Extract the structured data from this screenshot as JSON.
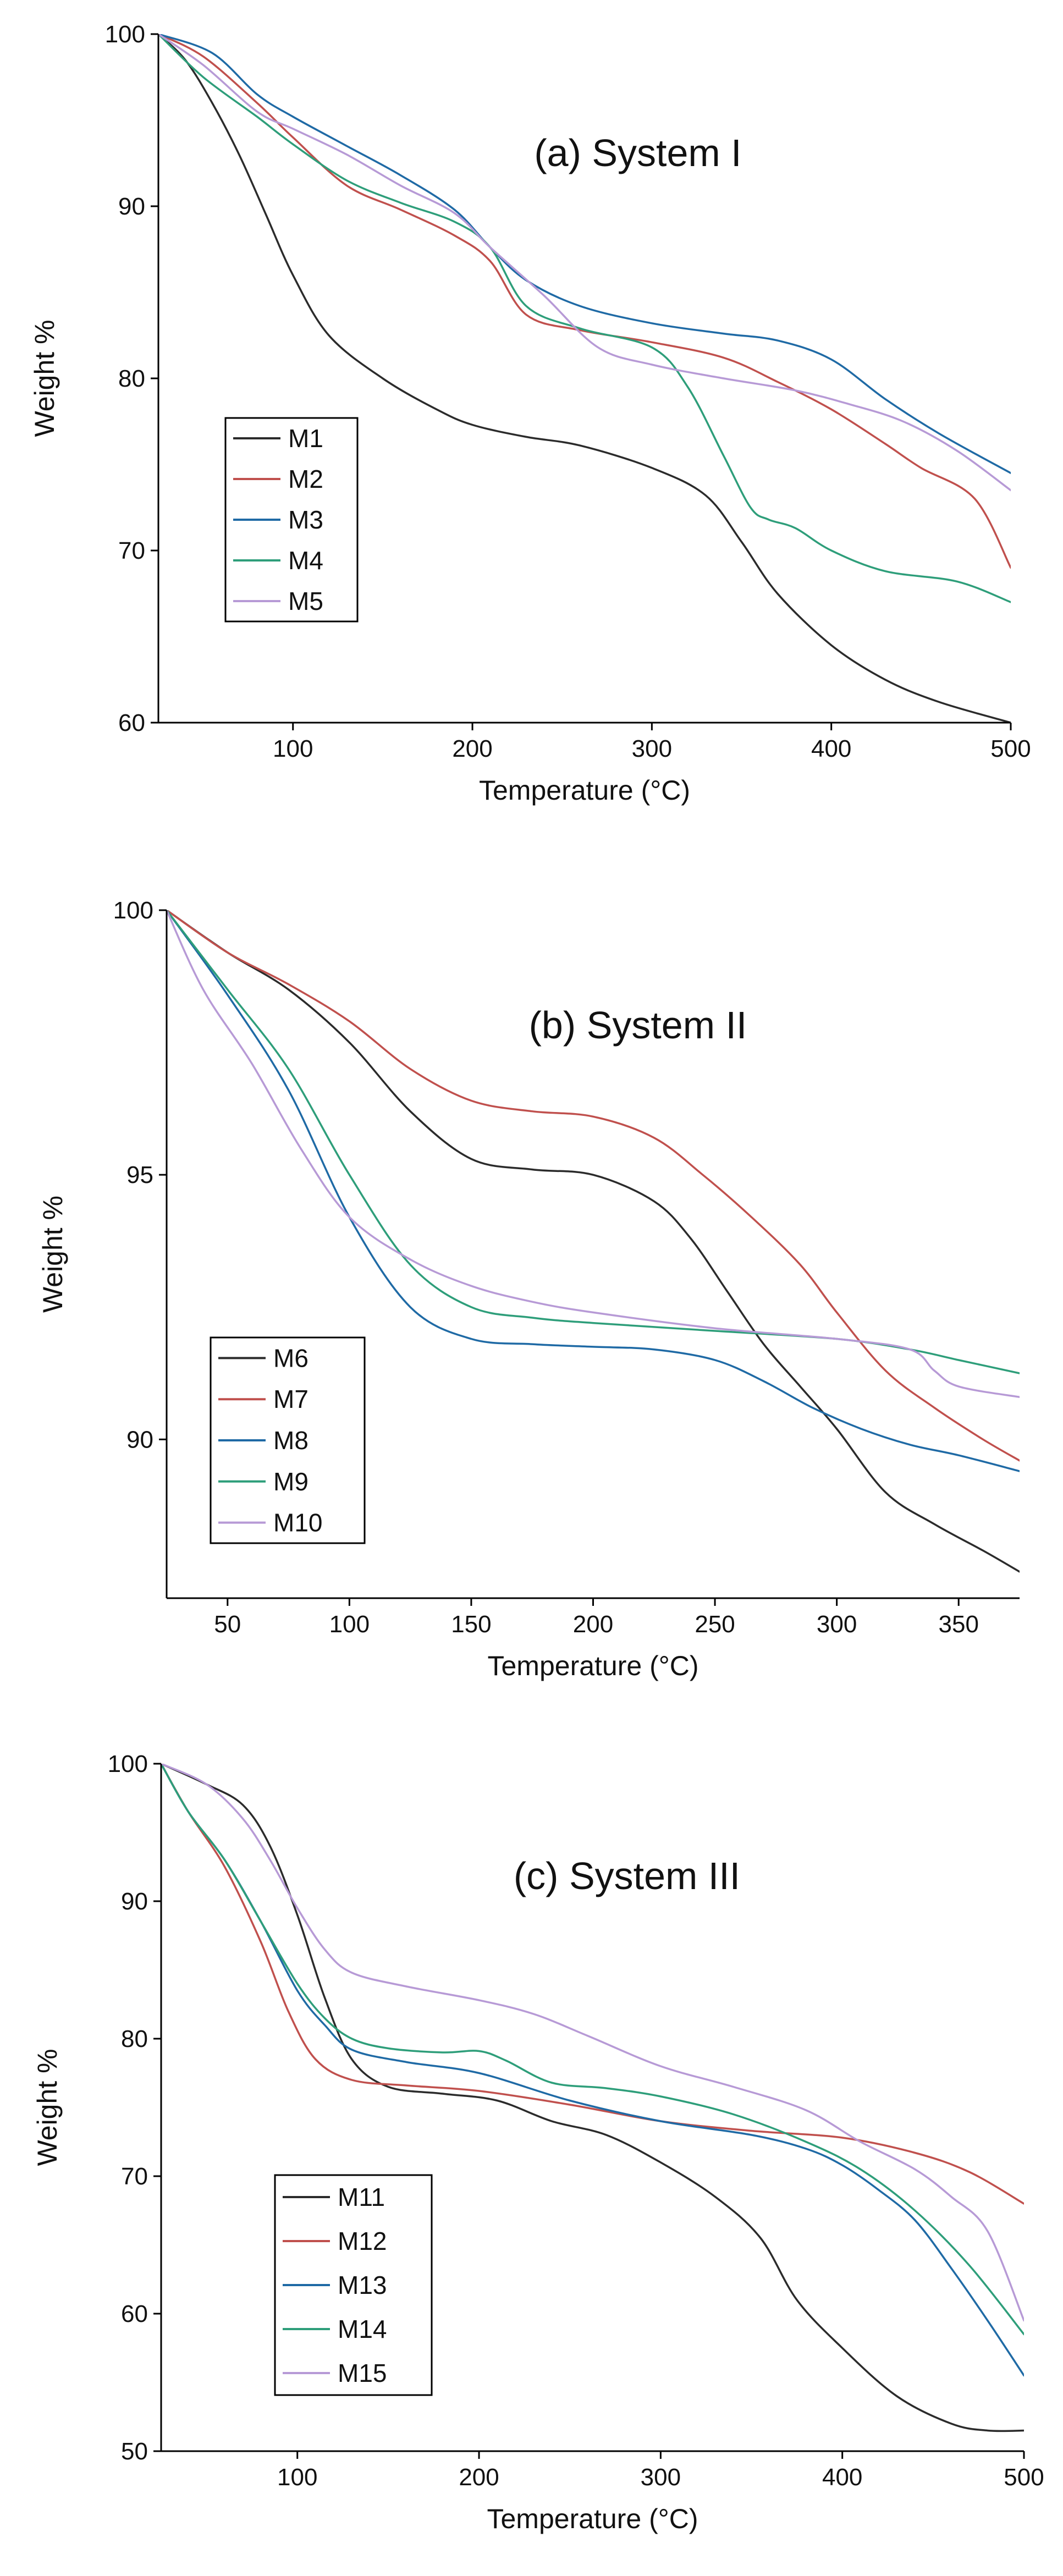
{
  "chart_data": [
    {
      "type": "line",
      "title": "(a) System I",
      "xlabel": "Temperature (°C)",
      "ylabel": "Weight %",
      "xlim": [
        25,
        500
      ],
      "ylim": [
        60,
        100
      ],
      "xticks": [
        100,
        200,
        300,
        400,
        500
      ],
      "yticks": [
        60,
        70,
        80,
        90,
        100
      ],
      "legend_position": "lower-left",
      "series": [
        {
          "name": "M1",
          "color": "#2b2b2b",
          "x": [
            25,
            40,
            55,
            70,
            85,
            100,
            120,
            150,
            180,
            200,
            230,
            260,
            300,
            330,
            350,
            370,
            400,
            430,
            460,
            500
          ],
          "y": [
            100,
            98.5,
            96,
            93,
            89.5,
            86,
            82.5,
            80,
            78.2,
            77.3,
            76.6,
            76.1,
            74.8,
            73.2,
            70.5,
            67.5,
            64.5,
            62.5,
            61.2,
            60
          ]
        },
        {
          "name": "M2",
          "color": "#c0504d",
          "x": [
            25,
            50,
            80,
            100,
            130,
            160,
            190,
            210,
            230,
            260,
            300,
            340,
            370,
            400,
            430,
            450,
            480,
            500
          ],
          "y": [
            100,
            98.7,
            96,
            94,
            91.2,
            89.8,
            88.3,
            86.8,
            83.7,
            82.8,
            82.1,
            81.2,
            79.8,
            78.2,
            76.2,
            74.8,
            73,
            69
          ]
        },
        {
          "name": "M3",
          "color": "#1f6aa5",
          "x": [
            25,
            55,
            80,
            100,
            130,
            160,
            190,
            210,
            230,
            260,
            300,
            340,
            370,
            400,
            430,
            460,
            500
          ],
          "y": [
            100,
            98.9,
            96.5,
            95.2,
            93.5,
            91.8,
            89.8,
            87.6,
            85.7,
            84.2,
            83.2,
            82.6,
            82.2,
            81.1,
            78.8,
            76.8,
            74.5
          ]
        },
        {
          "name": "M4",
          "color": "#2e9e7a",
          "x": [
            25,
            50,
            80,
            100,
            130,
            160,
            190,
            210,
            230,
            260,
            300,
            320,
            340,
            355,
            365,
            380,
            400,
            430,
            470,
            500
          ],
          "y": [
            100,
            97.5,
            95.2,
            93.6,
            91.5,
            90.2,
            89.1,
            87.6,
            84.2,
            82.9,
            81.8,
            79.5,
            75.5,
            72.5,
            71.8,
            71.3,
            70,
            68.8,
            68.2,
            67
          ]
        },
        {
          "name": "M5",
          "color": "#b79ad6",
          "x": [
            25,
            50,
            80,
            100,
            130,
            160,
            190,
            210,
            240,
            270,
            300,
            340,
            380,
            410,
            440,
            470,
            500
          ],
          "y": [
            100,
            98.2,
            95.5,
            94.5,
            93,
            91.2,
            89.6,
            87.6,
            84.8,
            81.8,
            80.8,
            80,
            79.3,
            78.5,
            77.5,
            75.8,
            73.5
          ]
        }
      ]
    },
    {
      "type": "line",
      "title": "(b) System II",
      "xlabel": "Temperature (°C)",
      "ylabel": "Weight %",
      "xlim": [
        25,
        375
      ],
      "ylim": [
        87,
        100
      ],
      "xticks": [
        50,
        100,
        150,
        200,
        250,
        300,
        350
      ],
      "yticks": [
        90,
        95,
        100
      ],
      "legend_position": "lower-left",
      "series": [
        {
          "name": "M6",
          "color": "#2b2b2b",
          "x": [
            25,
            50,
            75,
            100,
            125,
            150,
            175,
            200,
            225,
            240,
            255,
            270,
            285,
            300,
            320,
            340,
            360,
            375
          ],
          "y": [
            100,
            99.2,
            98.5,
            97.5,
            96.2,
            95.3,
            95.1,
            95,
            94.5,
            93.8,
            92.8,
            91.8,
            91,
            90.2,
            89,
            88.4,
            87.9,
            87.5
          ]
        },
        {
          "name": "M7",
          "color": "#c0504d",
          "x": [
            25,
            50,
            75,
            100,
            125,
            150,
            175,
            200,
            225,
            245,
            265,
            285,
            300,
            320,
            340,
            360,
            375
          ],
          "y": [
            100,
            99.2,
            98.6,
            97.9,
            97,
            96.4,
            96.2,
            96.1,
            95.7,
            95,
            94.2,
            93.3,
            92.4,
            91.3,
            90.6,
            90,
            89.6
          ]
        },
        {
          "name": "M8",
          "color": "#1f6aa5",
          "x": [
            25,
            50,
            75,
            100,
            125,
            150,
            175,
            200,
            225,
            250,
            270,
            290,
            310,
            330,
            350,
            375
          ],
          "y": [
            100,
            98.4,
            96.6,
            94.2,
            92.5,
            91.9,
            91.8,
            91.75,
            91.7,
            91.5,
            91.1,
            90.6,
            90.2,
            89.9,
            89.7,
            89.4
          ]
        },
        {
          "name": "M9",
          "color": "#2e9e7a",
          "x": [
            25,
            50,
            75,
            100,
            125,
            150,
            175,
            200,
            250,
            300,
            330,
            350,
            375
          ],
          "y": [
            100,
            98.5,
            97,
            95,
            93.3,
            92.5,
            92.3,
            92.2,
            92.05,
            91.9,
            91.7,
            91.5,
            91.25
          ]
        },
        {
          "name": "M10",
          "color": "#b79ad6",
          "x": [
            25,
            40,
            60,
            80,
            100,
            125,
            150,
            175,
            200,
            250,
            300,
            330,
            340,
            350,
            375
          ],
          "y": [
            100,
            98.5,
            97.1,
            95.5,
            94.2,
            93.4,
            92.9,
            92.6,
            92.4,
            92.1,
            91.9,
            91.7,
            91.3,
            91,
            90.8
          ]
        }
      ]
    },
    {
      "type": "line",
      "title": "(c) System III",
      "xlabel": "Temperature (°C)",
      "ylabel": "Weight %",
      "xlim": [
        25,
        500
      ],
      "ylim": [
        50,
        100
      ],
      "xticks": [
        100,
        200,
        300,
        400,
        500
      ],
      "yticks": [
        50,
        60,
        70,
        80,
        90,
        100
      ],
      "legend_position": "lower-left",
      "series": [
        {
          "name": "M11",
          "color": "#2b2b2b",
          "x": [
            25,
            50,
            70,
            85,
            100,
            115,
            130,
            150,
            180,
            210,
            240,
            270,
            300,
            330,
            355,
            375,
            400,
            430,
            460,
            480,
            500
          ],
          "y": [
            100,
            98.5,
            97,
            94,
            89,
            83,
            78.5,
            76.5,
            76,
            75.5,
            74,
            73,
            71,
            68.5,
            65.5,
            61,
            57.5,
            54,
            52,
            51.5,
            51.5
          ]
        },
        {
          "name": "M12",
          "color": "#c0504d",
          "x": [
            25,
            40,
            60,
            80,
            95,
            110,
            130,
            160,
            200,
            250,
            300,
            350,
            400,
            440,
            470,
            500
          ],
          "y": [
            100,
            96.5,
            92.5,
            87,
            82,
            78.5,
            77,
            76.6,
            76.2,
            75.2,
            74,
            73.3,
            72.8,
            71.7,
            70.3,
            68
          ]
        },
        {
          "name": "M13",
          "color": "#1f6aa5",
          "x": [
            25,
            40,
            60,
            80,
            100,
            115,
            130,
            160,
            200,
            250,
            300,
            350,
            380,
            400,
            420,
            440,
            460,
            480,
            500
          ],
          "y": [
            100,
            96.5,
            93,
            88.5,
            83.5,
            81,
            79.2,
            78.3,
            77.5,
            75.5,
            74,
            73,
            72,
            70.8,
            69,
            66.8,
            63.3,
            59.5,
            55.5
          ]
        },
        {
          "name": "M14",
          "color": "#2e9e7a",
          "x": [
            25,
            40,
            60,
            80,
            100,
            115,
            130,
            150,
            180,
            200,
            215,
            240,
            270,
            300,
            340,
            380,
            410,
            440,
            470,
            500
          ],
          "y": [
            100,
            96.5,
            93,
            88.5,
            84,
            81.5,
            80,
            79.3,
            79,
            79.1,
            78.4,
            76.8,
            76.4,
            75.8,
            74.5,
            72.5,
            70.5,
            67.5,
            63.5,
            58.5
          ]
        },
        {
          "name": "M15",
          "color": "#b79ad6",
          "x": [
            25,
            50,
            70,
            85,
            100,
            115,
            130,
            160,
            200,
            230,
            260,
            300,
            340,
            380,
            410,
            440,
            460,
            480,
            500
          ],
          "y": [
            100,
            98.5,
            96,
            93,
            89.5,
            86.5,
            84.8,
            83.8,
            82.8,
            81.8,
            80.2,
            78,
            76.5,
            74.8,
            72.5,
            70.5,
            68.5,
            66,
            59.5
          ]
        }
      ]
    }
  ]
}
